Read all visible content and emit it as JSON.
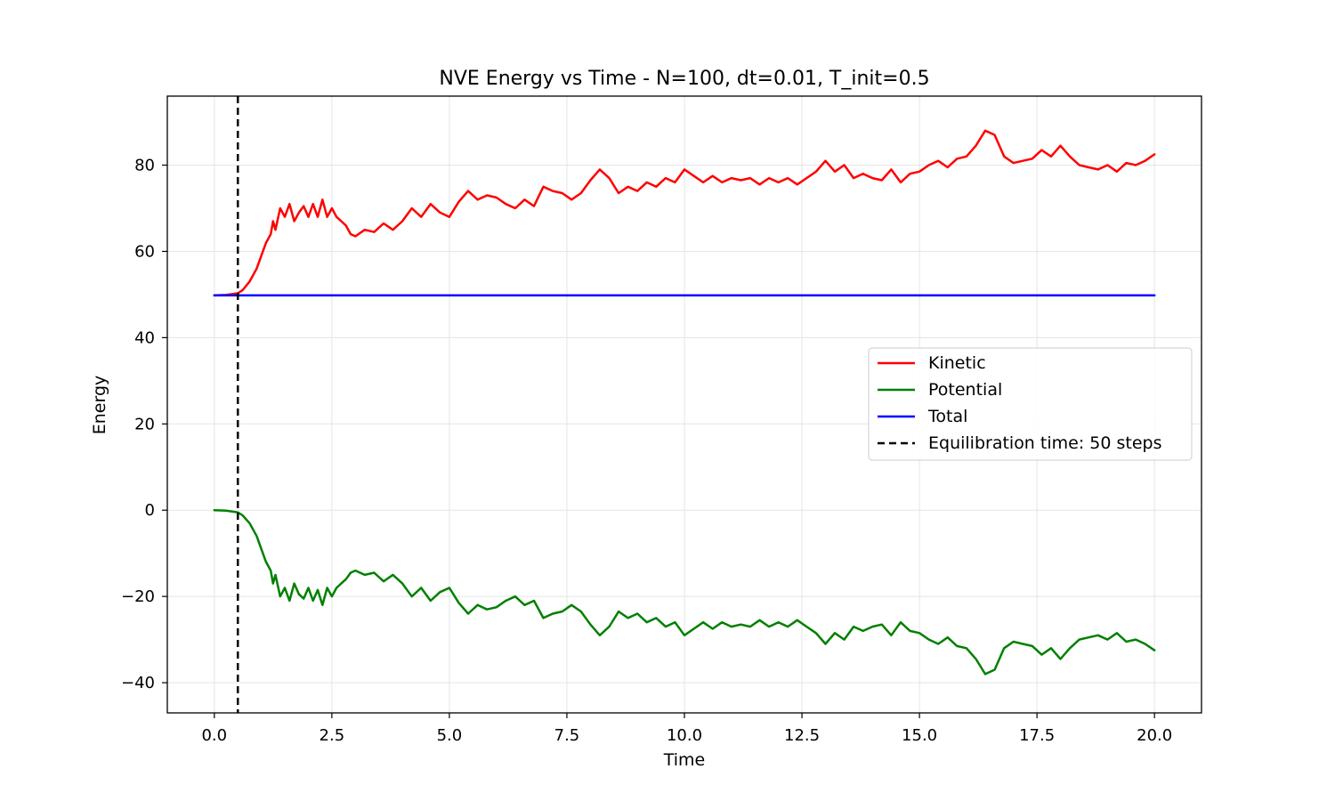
{
  "chart_data": {
    "type": "line",
    "title": "NVE Energy vs Time - N=100, dt=0.01, T_init=0.5",
    "xlabel": "Time",
    "ylabel": "Energy",
    "xlim": [
      -1.0,
      21.0
    ],
    "ylim": [
      -47.0,
      96.0
    ],
    "xticks": [
      0.0,
      2.5,
      5.0,
      7.5,
      10.0,
      12.5,
      15.0,
      17.5,
      20.0
    ],
    "xtick_labels": [
      "0.0",
      "2.5",
      "5.0",
      "7.5",
      "10.0",
      "12.5",
      "15.0",
      "17.5",
      "20.0"
    ],
    "yticks": [
      -40,
      -20,
      0,
      20,
      40,
      60,
      80
    ],
    "ytick_labels": [
      "−40",
      "−20",
      "0",
      "20",
      "40",
      "60",
      "80"
    ],
    "grid": true,
    "legend_position": "center-right",
    "equilibration": {
      "x": 0.5,
      "label": "Equilibration time: 50 steps",
      "color": "#000000",
      "style": "dashed"
    },
    "series": [
      {
        "name": "Kinetic",
        "color": "#ff0000",
        "x": [
          0.0,
          0.25,
          0.5,
          0.6,
          0.75,
          0.9,
          1.0,
          1.1,
          1.2,
          1.25,
          1.3,
          1.4,
          1.5,
          1.6,
          1.7,
          1.8,
          1.9,
          2.0,
          2.1,
          2.2,
          2.3,
          2.4,
          2.5,
          2.6,
          2.7,
          2.8,
          2.9,
          3.0,
          3.2,
          3.4,
          3.6,
          3.8,
          4.0,
          4.2,
          4.4,
          4.6,
          4.8,
          5.0,
          5.2,
          5.4,
          5.6,
          5.8,
          6.0,
          6.2,
          6.4,
          6.6,
          6.8,
          7.0,
          7.2,
          7.4,
          7.6,
          7.8,
          8.0,
          8.2,
          8.4,
          8.6,
          8.8,
          9.0,
          9.2,
          9.4,
          9.6,
          9.8,
          10.0,
          10.2,
          10.4,
          10.6,
          10.8,
          11.0,
          11.2,
          11.4,
          11.6,
          11.8,
          12.0,
          12.2,
          12.4,
          12.6,
          12.8,
          13.0,
          13.2,
          13.4,
          13.6,
          13.8,
          14.0,
          14.2,
          14.4,
          14.6,
          14.8,
          15.0,
          15.2,
          15.4,
          15.6,
          15.8,
          16.0,
          16.2,
          16.4,
          16.6,
          16.8,
          17.0,
          17.2,
          17.4,
          17.6,
          17.8,
          18.0,
          18.2,
          18.4,
          18.6,
          18.8,
          19.0,
          19.2,
          19.4,
          19.6,
          19.8,
          20.0
        ],
        "values": [
          49.8,
          49.9,
          50.3,
          51.0,
          53.0,
          56.0,
          59.0,
          62.0,
          64.0,
          67.0,
          65.0,
          70.0,
          68.0,
          71.0,
          67.0,
          69.0,
          70.5,
          68.0,
          71.0,
          68.0,
          72.0,
          68.0,
          70.0,
          68.0,
          67.0,
          66.0,
          64.0,
          63.5,
          65.0,
          64.5,
          66.5,
          65.0,
          67.0,
          70.0,
          68.0,
          71.0,
          69.0,
          68.0,
          71.5,
          74.0,
          72.0,
          73.0,
          72.5,
          71.0,
          70.0,
          72.0,
          70.5,
          75.0,
          74.0,
          73.5,
          72.0,
          73.5,
          76.5,
          79.0,
          77.0,
          73.5,
          75.0,
          74.0,
          76.0,
          75.0,
          77.0,
          76.0,
          79.0,
          77.5,
          76.0,
          77.5,
          76.0,
          77.0,
          76.5,
          77.0,
          75.5,
          77.0,
          76.0,
          77.0,
          75.5,
          77.0,
          78.5,
          81.0,
          78.5,
          80.0,
          77.0,
          78.0,
          77.0,
          76.5,
          79.0,
          76.0,
          78.0,
          78.5,
          80.0,
          81.0,
          79.5,
          81.5,
          82.0,
          84.5,
          88.0,
          87.0,
          82.0,
          80.5,
          81.0,
          81.5,
          83.5,
          82.0,
          84.5,
          82.0,
          80.0,
          79.5,
          79.0,
          80.0,
          78.5,
          80.5,
          80.0,
          81.0,
          82.5
        ]
      },
      {
        "name": "Potential",
        "color": "#008000",
        "x": [
          0.0,
          0.25,
          0.5,
          0.6,
          0.75,
          0.9,
          1.0,
          1.1,
          1.2,
          1.25,
          1.3,
          1.4,
          1.5,
          1.6,
          1.7,
          1.8,
          1.9,
          2.0,
          2.1,
          2.2,
          2.3,
          2.4,
          2.5,
          2.6,
          2.7,
          2.8,
          2.9,
          3.0,
          3.2,
          3.4,
          3.6,
          3.8,
          4.0,
          4.2,
          4.4,
          4.6,
          4.8,
          5.0,
          5.2,
          5.4,
          5.6,
          5.8,
          6.0,
          6.2,
          6.4,
          6.6,
          6.8,
          7.0,
          7.2,
          7.4,
          7.6,
          7.8,
          8.0,
          8.2,
          8.4,
          8.6,
          8.8,
          9.0,
          9.2,
          9.4,
          9.6,
          9.8,
          10.0,
          10.2,
          10.4,
          10.6,
          10.8,
          11.0,
          11.2,
          11.4,
          11.6,
          11.8,
          12.0,
          12.2,
          12.4,
          12.6,
          12.8,
          13.0,
          13.2,
          13.4,
          13.6,
          13.8,
          14.0,
          14.2,
          14.4,
          14.6,
          14.8,
          15.0,
          15.2,
          15.4,
          15.6,
          15.8,
          16.0,
          16.2,
          16.4,
          16.6,
          16.8,
          17.0,
          17.2,
          17.4,
          17.6,
          17.8,
          18.0,
          18.2,
          18.4,
          18.6,
          18.8,
          19.0,
          19.2,
          19.4,
          19.6,
          19.8,
          20.0
        ],
        "values": [
          0.0,
          -0.1,
          -0.5,
          -1.2,
          -3.0,
          -6.0,
          -9.0,
          -12.0,
          -14.0,
          -17.0,
          -15.0,
          -20.0,
          -18.0,
          -21.0,
          -17.0,
          -19.5,
          -20.5,
          -18.0,
          -21.0,
          -18.5,
          -22.0,
          -18.0,
          -20.0,
          -18.0,
          -17.0,
          -16.0,
          -14.5,
          -14.0,
          -15.0,
          -14.5,
          -16.5,
          -15.0,
          -17.0,
          -20.0,
          -18.0,
          -21.0,
          -19.0,
          -18.0,
          -21.5,
          -24.0,
          -22.0,
          -23.0,
          -22.5,
          -21.0,
          -20.0,
          -22.0,
          -21.0,
          -25.0,
          -24.0,
          -23.5,
          -22.0,
          -23.5,
          -26.5,
          -29.0,
          -27.0,
          -23.5,
          -25.0,
          -24.0,
          -26.0,
          -25.0,
          -27.0,
          -26.0,
          -29.0,
          -27.5,
          -26.0,
          -27.5,
          -26.0,
          -27.0,
          -26.5,
          -27.0,
          -25.5,
          -27.0,
          -26.0,
          -27.0,
          -25.5,
          -27.0,
          -28.5,
          -31.0,
          -28.5,
          -30.0,
          -27.0,
          -28.0,
          -27.0,
          -26.5,
          -29.0,
          -26.0,
          -28.0,
          -28.5,
          -30.0,
          -31.0,
          -29.5,
          -31.5,
          -32.0,
          -34.5,
          -38.0,
          -37.0,
          -32.0,
          -30.5,
          -31.0,
          -31.5,
          -33.5,
          -32.0,
          -34.5,
          -32.0,
          -30.0,
          -29.5,
          -29.0,
          -30.0,
          -28.5,
          -30.5,
          -30.0,
          -31.0,
          -32.5
        ]
      },
      {
        "name": "Total",
        "color": "#0000ff",
        "x": [
          0.0,
          20.0
        ],
        "values": [
          49.8,
          49.8
        ]
      }
    ]
  }
}
